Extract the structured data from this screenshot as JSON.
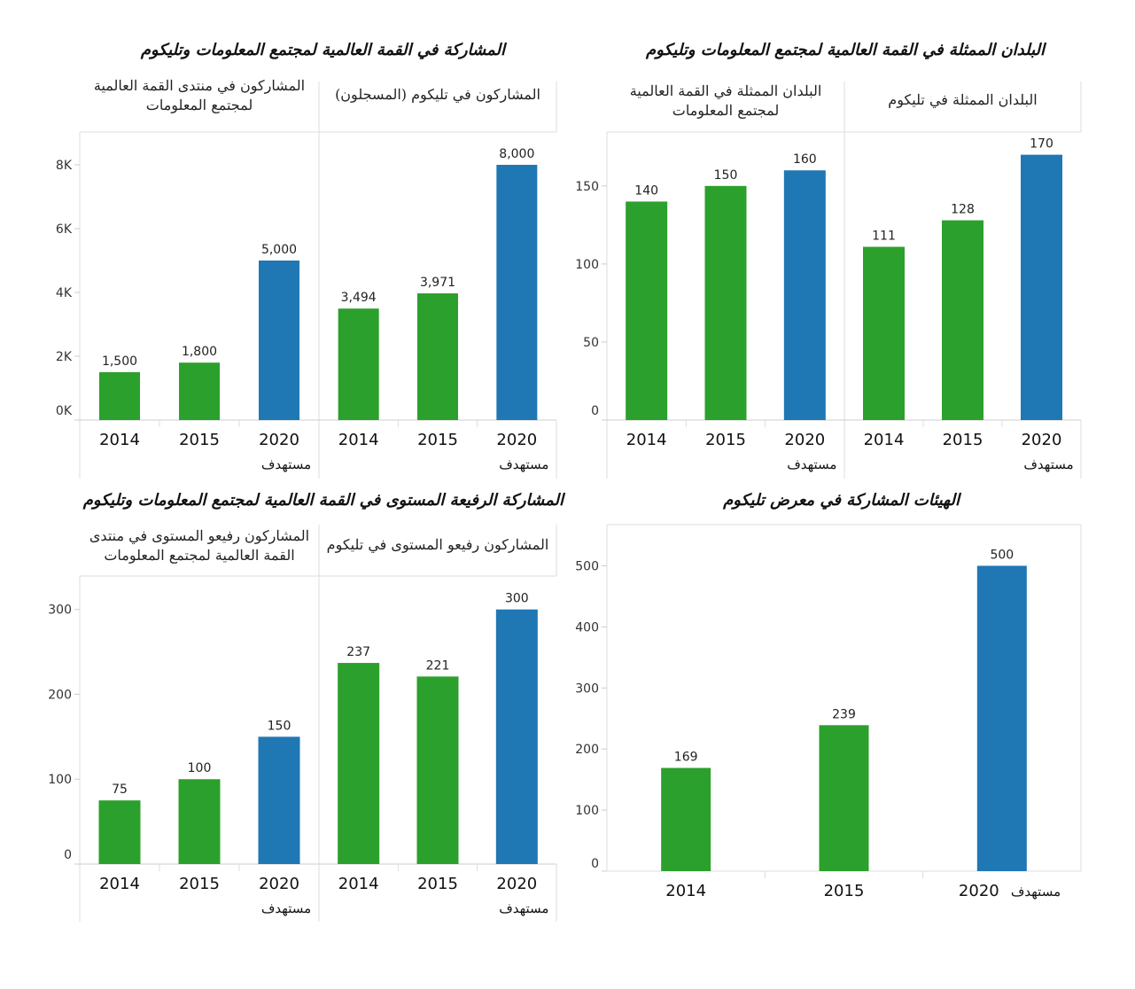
{
  "colors": {
    "actual": "#2ca02c",
    "target": "#1f77b4",
    "grid": "#dcdcdc",
    "axis": "#cccccc"
  },
  "chart_data": [
    {
      "id": "participation",
      "type": "bar",
      "title": "المشاركة في القمة العالمية لمجتمع المعلومات وتليكوم",
      "yticks": [
        "0K",
        "2K",
        "4K",
        "6K",
        "8K"
      ],
      "ylim": [
        0,
        9000
      ],
      "categories": [
        "2014",
        "2015",
        "2020"
      ],
      "target_label": "مستهدف",
      "facets": [
        {
          "subtitle": [
            "المشاركون في منتدى القمة العالمية",
            "لمجتمع المعلومات"
          ],
          "values": [
            1500,
            1800,
            5000
          ],
          "labels": [
            "1,500",
            "1,800",
            "5,000"
          ]
        },
        {
          "subtitle": [
            "المشاركون في تليكوم (المسجلون)"
          ],
          "values": [
            3494,
            3971,
            8000
          ],
          "labels": [
            "3,494",
            "3,971",
            "8,000"
          ]
        }
      ]
    },
    {
      "id": "countries",
      "type": "bar",
      "title": "البلدان الممثلة في القمة العالمية لمجتمع المعلومات وتليكوم",
      "yticks": [
        "0",
        "50",
        "100",
        "150"
      ],
      "ylim": [
        0,
        180
      ],
      "categories": [
        "2014",
        "2015",
        "2020"
      ],
      "target_label": "مستهدف",
      "facets": [
        {
          "subtitle": [
            "البلدان الممثلة في القمة العالمية",
            "لمجتمع المعلومات"
          ],
          "values": [
            140,
            150,
            160
          ],
          "labels": [
            "140",
            "150",
            "160"
          ]
        },
        {
          "subtitle": [
            "البلدان الممثلة في تليكوم"
          ],
          "values": [
            111,
            128,
            170
          ],
          "labels": [
            "111",
            "128",
            "170"
          ]
        }
      ]
    },
    {
      "id": "highlevel",
      "type": "bar",
      "title": "المشاركة الرفيعة المستوى في القمة العالمية لمجتمع المعلومات وتليكوم",
      "yticks": [
        "0",
        "100",
        "200",
        "300"
      ],
      "ylim": [
        0,
        330
      ],
      "categories": [
        "2014",
        "2015",
        "2020"
      ],
      "target_label": "مستهدف",
      "facets": [
        {
          "subtitle": [
            "المشاركون رفيعو المستوى في منتدى",
            "القمة العالمية لمجتمع المعلومات"
          ],
          "values": [
            75,
            100,
            150
          ],
          "labels": [
            "75",
            "100",
            "150"
          ]
        },
        {
          "subtitle": [
            "المشاركون رفيعو المستوى في تليكوم"
          ],
          "values": [
            237,
            221,
            300
          ],
          "labels": [
            "237",
            "221",
            "300"
          ]
        }
      ]
    },
    {
      "id": "exhibitors",
      "type": "bar",
      "title": "الهيئات المشاركة في معرض تليكوم",
      "yticks": [
        "0",
        "100",
        "200",
        "300",
        "400",
        "500"
      ],
      "ylim": [
        0,
        550
      ],
      "categories": [
        "2014",
        "2015",
        "2020"
      ],
      "target_label": "مستهدف",
      "values": [
        169,
        239,
        500
      ],
      "labels": [
        "169",
        "239",
        "500"
      ]
    }
  ]
}
